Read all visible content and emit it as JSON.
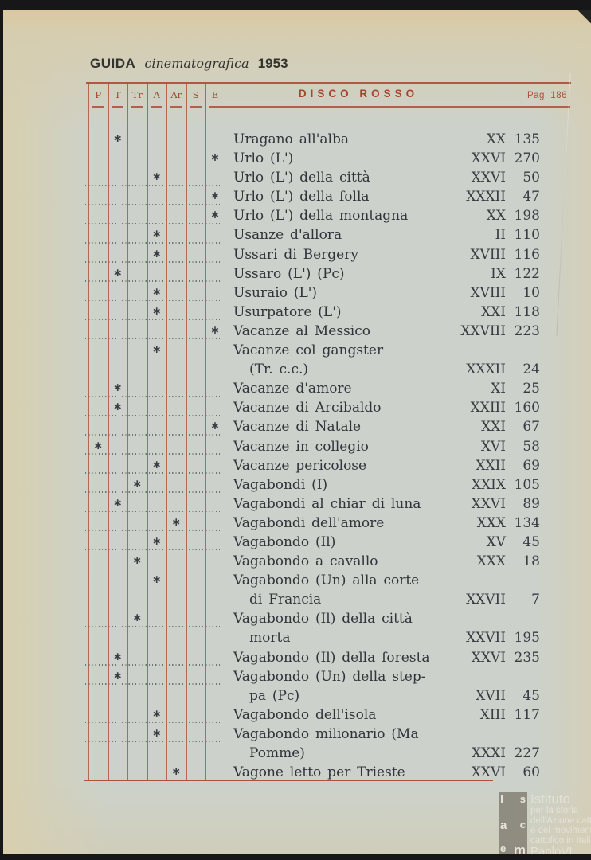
{
  "masthead": {
    "brand": "GUIDA",
    "subtitle": "cinematografica",
    "year": "1953"
  },
  "table_header": {
    "columns": [
      "P",
      "T",
      "Tr",
      "A",
      "Ar",
      "S",
      "E"
    ],
    "section_title": "DISCO ROSSO",
    "page_label": "Pag. 186"
  },
  "marker_glyph": "∗",
  "entries": [
    {
      "title": "Uragano all'alba",
      "title2": null,
      "col": "T",
      "volume": "XX",
      "page": "135"
    },
    {
      "title": "Urlo (L')",
      "title2": null,
      "col": "E",
      "volume": "XXVI",
      "page": "270"
    },
    {
      "title": "Urlo (L') della città",
      "title2": null,
      "col": "A",
      "volume": "XXVI",
      "page": "50"
    },
    {
      "title": "Urlo (L') della folla",
      "title2": null,
      "col": "E",
      "volume": "XXXII",
      "page": "47"
    },
    {
      "title": "Urlo (L') della montagna",
      "title2": null,
      "col": "E",
      "volume": "XX",
      "page": "198"
    },
    {
      "title": "Usanze d'allora",
      "title2": null,
      "col": "A",
      "volume": "II",
      "page": "110"
    },
    {
      "title": "Ussari di Bergery",
      "title2": null,
      "col": "A",
      "volume": "XVIII",
      "page": "116"
    },
    {
      "title": "Ussaro (L') (Pc)",
      "title2": null,
      "col": "T",
      "volume": "IX",
      "page": "122"
    },
    {
      "title": "Usuraio (L')",
      "title2": null,
      "col": "A",
      "volume": "XVIII",
      "page": "10"
    },
    {
      "title": "Usurpatore (L')",
      "title2": null,
      "col": "A",
      "volume": "XXI",
      "page": "118"
    },
    {
      "title": "Vacanze al Messico",
      "title2": null,
      "col": "E",
      "volume": "XXVIII",
      "page": "223"
    },
    {
      "title": "Vacanze col gangster",
      "title2": "(Tr. c.c.)",
      "col": "A",
      "volume": "XXXII",
      "page": "24"
    },
    {
      "title": "Vacanze d'amore",
      "title2": null,
      "col": "T",
      "volume": "XI",
      "page": "25"
    },
    {
      "title": "Vacanze di Arcibaldo",
      "title2": null,
      "col": "T",
      "volume": "XXIII",
      "page": "160"
    },
    {
      "title": "Vacanze di Natale",
      "title2": null,
      "col": "E",
      "volume": "XXI",
      "page": "67"
    },
    {
      "title": "Vacanze in collegio",
      "title2": null,
      "col": "P",
      "volume": "XVI",
      "page": "58"
    },
    {
      "title": "Vacanze pericolose",
      "title2": null,
      "col": "A",
      "volume": "XXII",
      "page": "69"
    },
    {
      "title": "Vagabondi (I)",
      "title2": null,
      "col": "Tr",
      "volume": "XXIX",
      "page": "105"
    },
    {
      "title": "Vagabondi al chiar di luna",
      "title2": null,
      "col": "T",
      "volume": "XXVI",
      "page": "89"
    },
    {
      "title": "Vagabondi  dell'amore",
      "title2": null,
      "col": "Ar",
      "volume": "XXX",
      "page": "134"
    },
    {
      "title": "Vagabondo (Il)",
      "title2": null,
      "col": "A",
      "volume": "XV",
      "page": "45"
    },
    {
      "title": "Vagabondo a cavallo",
      "title2": null,
      "col": "Tr",
      "volume": "XXX",
      "page": "18"
    },
    {
      "title": "Vagabondo (Un) alla corte",
      "title2": "di Francia",
      "col": "A",
      "volume": "XXVII",
      "page": "7"
    },
    {
      "title": "Vagabondo (Il) della città",
      "title2": "morta",
      "col": "Tr",
      "volume": "XXVII",
      "page": "195"
    },
    {
      "title": "Vagabondo (Il) della foresta",
      "title2": null,
      "col": "T",
      "volume": "XXVI",
      "page": "235"
    },
    {
      "title": "Vagabondo (Un) della step-",
      "title2": "pa (Pc)",
      "col": "T",
      "volume": "XVII",
      "page": "45"
    },
    {
      "title": "Vagabondo dell'isola",
      "title2": null,
      "col": "A",
      "volume": "XIII",
      "page": "117"
    },
    {
      "title": "Vagabondo milionario (Ma",
      "title2": "Pomme)",
      "col": "A",
      "volume": "XXXI",
      "page": "227"
    },
    {
      "title": "Vagone letto per Trieste",
      "title2": null,
      "col": "Ar",
      "volume": "XXVI",
      "page": "60"
    }
  ],
  "watermark": {
    "monogram_rows": [
      [
        "I",
        "s"
      ],
      [
        "a",
        "c"
      ],
      [
        "e",
        "m"
      ]
    ],
    "lines": [
      "Istituto",
      "per la storia",
      "dell'Azione cattolica",
      "e del movimento",
      "cattolico in Italia",
      "PaoloVI"
    ]
  },
  "colors": {
    "rule_red": "#a8452c",
    "ink": "#33333b",
    "paper_green": "#ccd2cb",
    "paper_beige": "#d6cdb0"
  }
}
